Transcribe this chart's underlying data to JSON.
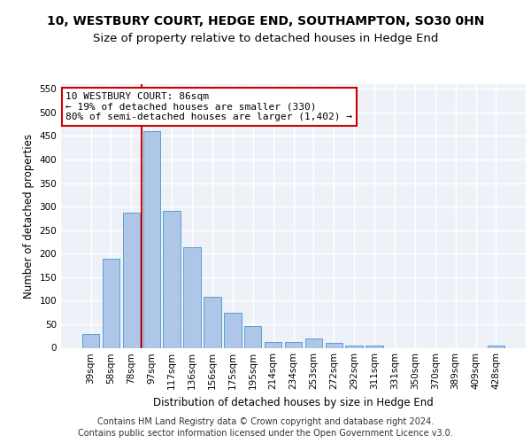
{
  "title1": "10, WESTBURY COURT, HEDGE END, SOUTHAMPTON, SO30 0HN",
  "title2": "Size of property relative to detached houses in Hedge End",
  "xlabel": "Distribution of detached houses by size in Hedge End",
  "ylabel": "Number of detached properties",
  "categories": [
    "39sqm",
    "58sqm",
    "78sqm",
    "97sqm",
    "117sqm",
    "136sqm",
    "156sqm",
    "175sqm",
    "195sqm",
    "214sqm",
    "234sqm",
    "253sqm",
    "272sqm",
    "292sqm",
    "311sqm",
    "331sqm",
    "350sqm",
    "370sqm",
    "389sqm",
    "409sqm",
    "428sqm"
  ],
  "values": [
    30,
    190,
    288,
    460,
    290,
    213,
    109,
    74,
    46,
    13,
    13,
    20,
    10,
    5,
    5,
    0,
    0,
    0,
    0,
    0,
    5
  ],
  "bar_color": "#aec6e8",
  "bar_edge_color": "#5a9fd4",
  "red_line_x": 2.5,
  "red_line_color": "#cc0000",
  "annotation_text": "10 WESTBURY COURT: 86sqm\n← 19% of detached houses are smaller (330)\n80% of semi-detached houses are larger (1,402) →",
  "annotation_box_color": "#ffffff",
  "annotation_box_edge": "#cc0000",
  "footer1": "Contains HM Land Registry data © Crown copyright and database right 2024.",
  "footer2": "Contains public sector information licensed under the Open Government Licence v3.0.",
  "ylim": [
    0,
    560
  ],
  "yticks": [
    0,
    50,
    100,
    150,
    200,
    250,
    300,
    350,
    400,
    450,
    500,
    550
  ],
  "bg_color": "#eef2f8",
  "grid_color": "#ffffff",
  "title1_fontsize": 10,
  "title2_fontsize": 9.5,
  "axis_label_fontsize": 8.5,
  "tick_fontsize": 7.5,
  "annotation_fontsize": 8,
  "footer_fontsize": 7
}
